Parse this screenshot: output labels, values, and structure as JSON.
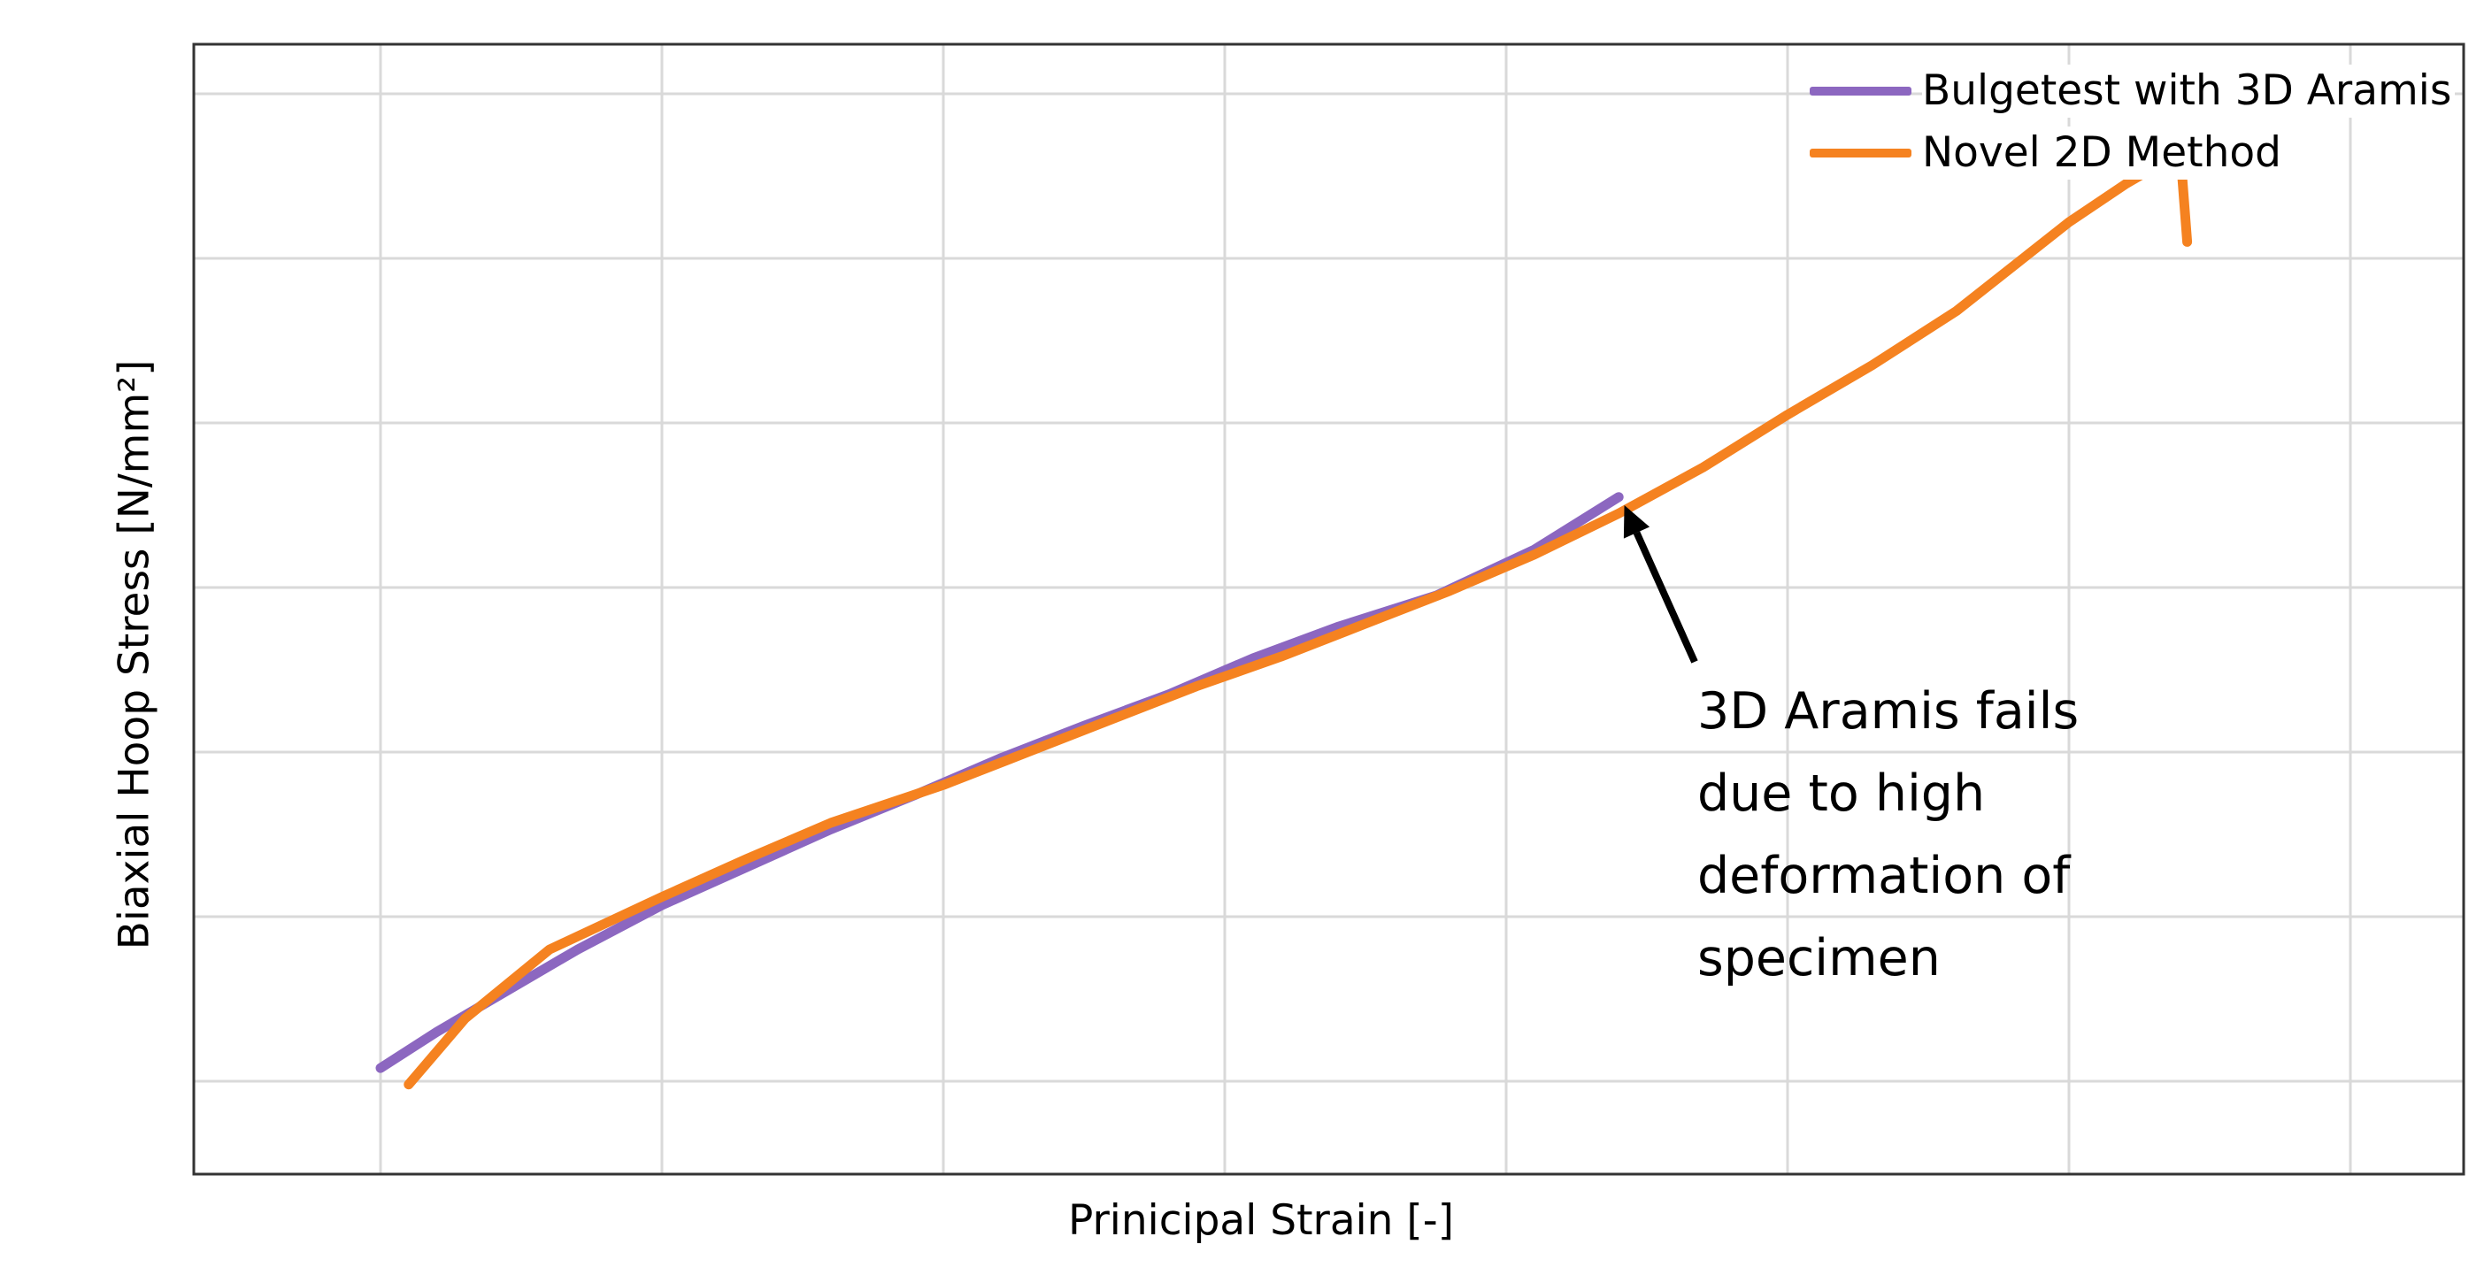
{
  "chart_data": {
    "type": "line",
    "xlabel": "Prinicipal Strain [-]",
    "ylabel": "Biaxial Hoop Stress [N/mm²]",
    "xlim": [
      0,
      7.4
    ],
    "ylim": [
      -0.6,
      6.4
    ],
    "x_ticks_shown": false,
    "y_ticks_shown": false,
    "grid": true,
    "legend_position": "top-right",
    "series": [
      {
        "name": "Bulgetest with 3D Aramis",
        "color": "#8c67c0",
        "x": [
          0.0,
          0.2,
          0.35,
          0.5,
          0.7,
          1.0,
          1.3,
          1.6,
          1.9,
          2.2,
          2.5,
          2.8,
          3.1,
          3.4,
          3.75,
          4.1,
          4.4
        ],
        "y": [
          0.08,
          0.3,
          0.45,
          0.6,
          0.8,
          1.07,
          1.3,
          1.53,
          1.74,
          1.96,
          2.16,
          2.35,
          2.57,
          2.76,
          2.95,
          3.23,
          3.55
        ]
      },
      {
        "name": "Novel 2D Method",
        "color": "#f58220",
        "x": [
          0.1,
          0.3,
          0.6,
          1.0,
          1.3,
          1.6,
          2.0,
          2.3,
          2.6,
          2.9,
          3.2,
          3.5,
          3.8,
          4.1,
          4.4,
          4.7,
          5.0,
          5.3,
          5.6,
          5.8,
          6.0,
          6.2,
          6.3,
          6.4,
          6.42
        ],
        "y": [
          -0.02,
          0.38,
          0.8,
          1.12,
          1.35,
          1.57,
          1.8,
          2.0,
          2.2,
          2.4,
          2.58,
          2.78,
          2.98,
          3.2,
          3.45,
          3.73,
          4.05,
          4.35,
          4.68,
          4.95,
          5.22,
          5.45,
          5.55,
          5.55,
          5.1
        ]
      }
    ],
    "annotation": {
      "lines": [
        "3D Aramis fails",
        "due to high",
        "deformation of",
        "specimen"
      ],
      "points_to": {
        "x": 4.42,
        "y": 3.5
      }
    }
  }
}
